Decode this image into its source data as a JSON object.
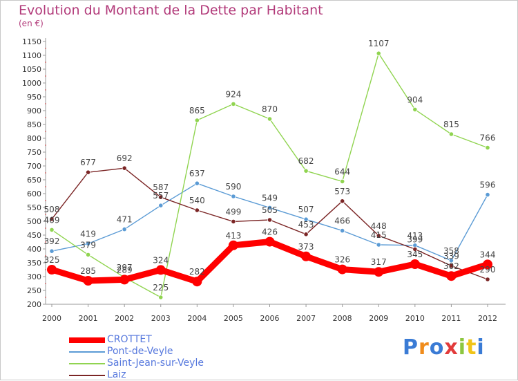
{
  "title": "Evolution du Montant de la Dette par Habitant",
  "unit_label": "(en €)",
  "brand": {
    "text": "Proxiti",
    "colors": [
      "#3a7bd5",
      "#f08c1c",
      "#3a7bd5",
      "#e23b3b",
      "#8cc63f",
      "#f0c419",
      "#3a7bd5"
    ]
  },
  "chart_data": {
    "type": "line",
    "title": "Evolution du Montant de la Dette par Habitant",
    "ylabel": "(en €)",
    "xlabel": "",
    "ylim": [
      200,
      1150
    ],
    "ytick_step": 50,
    "grid": false,
    "legend_position": "bottom-left",
    "categories": [
      "2000",
      "2001",
      "2002",
      "2003",
      "2004",
      "2005",
      "2006",
      "2007",
      "2008",
      "2009",
      "2010",
      "2011",
      "2012"
    ],
    "series": [
      {
        "name": "CROTTET",
        "color": "#ff0000",
        "values": [
          325,
          285,
          289,
          324,
          282,
          413,
          426,
          373,
          326,
          317,
          345,
          302,
          344
        ],
        "labels": [
          "325",
          "285",
          "289",
          "324",
          "282",
          "413",
          "426",
          "373",
          "326",
          "317",
          "345",
          "302",
          "344"
        ]
      },
      {
        "name": "Pont-de-Veyle",
        "color": "#5b9bd5",
        "values": [
          392,
          419,
          471,
          557,
          637,
          590,
          549,
          507,
          466,
          415,
          413,
          358,
          596
        ],
        "labels": [
          "392",
          "419",
          "471",
          "557",
          "637",
          "590",
          "549",
          "507",
          "466",
          "415",
          "413",
          "358",
          "596"
        ]
      },
      {
        "name": "Saint-Jean-sur-Veyle",
        "color": "#90d450",
        "values": [
          469,
          379,
          297,
          225,
          865,
          924,
          870,
          682,
          644,
          1107,
          904,
          815,
          766
        ],
        "labels": [
          "469",
          "379",
          "297",
          "225",
          "865",
          "924",
          "870",
          "682",
          "644",
          "1107",
          "904",
          "815",
          "766"
        ]
      },
      {
        "name": "Laiz",
        "color": "#7b2525",
        "values": [
          508,
          677,
          692,
          587,
          540,
          499,
          505,
          453,
          573,
          448,
          399,
          339,
          290
        ],
        "labels": [
          "508",
          "677",
          "692",
          "587",
          "540",
          "499",
          "505",
          "453",
          "573",
          "448",
          "399",
          "339",
          "290"
        ]
      }
    ]
  }
}
